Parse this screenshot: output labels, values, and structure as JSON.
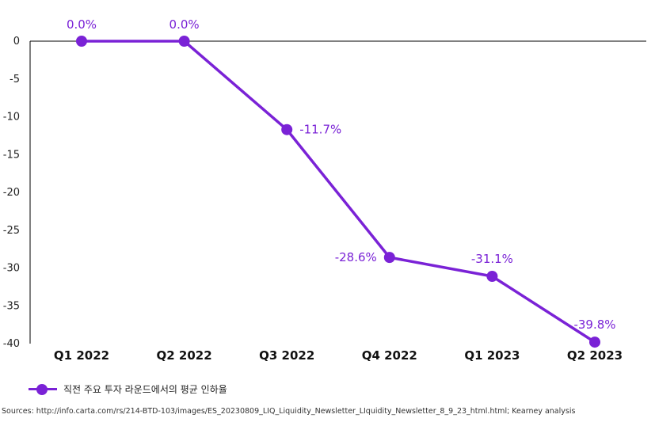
{
  "chart_data": {
    "type": "line",
    "categories": [
      "Q1 2022",
      "Q2 2022",
      "Q3 2022",
      "Q4 2022",
      "Q1 2023",
      "Q2 2023"
    ],
    "series": [
      {
        "name": "직전 주요 투자 라운드에서의 평균 인하율",
        "values": [
          0.0,
          0.0,
          -11.7,
          -28.6,
          -31.1,
          -39.8
        ],
        "labels": [
          "0.0%",
          "0.0%",
          "-11.7%",
          "-28.6%",
          "-31.1%",
          "-39.8%"
        ],
        "color": "#7a22d6"
      }
    ],
    "ylim": [
      -40,
      0
    ],
    "yticks": [
      0,
      -5,
      -10,
      -15,
      -20,
      -25,
      -30,
      -35,
      -40
    ],
    "grid": false,
    "legend_position": "bottom-left"
  },
  "source": "Sources: http://info.carta.com/rs/214-BTD-103/images/ES_20230809_LIQ_Liquidity_Newsletter_LIquidity_Newsletter_8_9_23_html.html; Kearney analysis"
}
